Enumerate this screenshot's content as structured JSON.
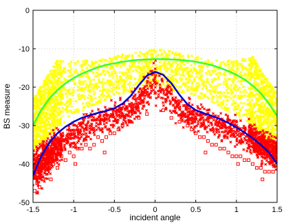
{
  "chart_data": {
    "type": "scatter",
    "title": "",
    "xlabel": "incident angle",
    "ylabel": "BS measure",
    "xlim": [
      -1.5,
      1.5
    ],
    "ylim": [
      -50,
      0
    ],
    "x_ticks": [
      -1.5,
      -1,
      -0.5,
      0,
      0.5,
      1,
      1.5
    ],
    "x_tick_labels": [
      "-1.5",
      "-1",
      "-0.5",
      "0",
      "0.5",
      "1",
      "1.5"
    ],
    "y_ticks": [
      -50,
      -40,
      -30,
      -20,
      -10,
      0
    ],
    "y_tick_labels": [
      "-50",
      "-40",
      "-30",
      "-20",
      "-10",
      "0"
    ],
    "grid": true,
    "legend": "none",
    "colors": {
      "yellow_points": "#ffff00",
      "red_points": "#ff0000",
      "green_curve": "#33ff33",
      "blue_curve": "#0000cc"
    },
    "series": [
      {
        "kind": "scatter-cloud",
        "marker": "x",
        "color": "yellow",
        "upper_envelope": {
          "x": [
            -1.5,
            -1.2,
            -1.0,
            -0.7,
            -0.3,
            0.0,
            0.3,
            0.7,
            1.0,
            1.2,
            1.5
          ],
          "y": [
            -23,
            -13,
            -13,
            -13,
            -11,
            -10,
            -11,
            -13,
            -13,
            -12,
            -22
          ]
        },
        "lower_envelope": {
          "x": [
            -1.5,
            -1.2,
            -1.0,
            -0.7,
            -0.3,
            0.0,
            0.3,
            0.7,
            1.0,
            1.2,
            1.5
          ],
          "y": [
            -40,
            -35,
            -31,
            -27,
            -24,
            -22,
            -24,
            -27,
            -31,
            -35,
            -40
          ]
        }
      },
      {
        "kind": "scatter-cloud",
        "marker": "x",
        "color": "red",
        "upper_envelope": {
          "x": [
            -1.5,
            -1.2,
            -1.0,
            -0.7,
            -0.3,
            0.0,
            0.3,
            0.7,
            1.0,
            1.2,
            1.5
          ],
          "y": [
            -33,
            -29,
            -27,
            -24,
            -21,
            -11,
            -21,
            -24,
            -26,
            -28,
            -32
          ]
        },
        "lower_envelope": {
          "x": [
            -1.5,
            -1.2,
            -1.0,
            -0.7,
            -0.3,
            0.0,
            0.3,
            0.7,
            1.0,
            1.2,
            1.5
          ],
          "y": [
            -50,
            -42,
            -38,
            -34,
            -31,
            -26,
            -31,
            -34,
            -37,
            -40,
            -43
          ]
        }
      },
      {
        "kind": "scatter-outliers",
        "marker": "square",
        "color": "red",
        "x": [
          -1.48,
          -1.45,
          -1.42,
          -1.4,
          -1.38,
          -1.35,
          -1.3,
          -1.25,
          -1.2,
          -1.15,
          -1.1,
          -1.05,
          -1.0,
          -0.95,
          -0.9,
          -0.85,
          -0.8,
          -0.75,
          -0.7,
          -0.65,
          -0.6,
          -0.55,
          -0.5,
          -0.45,
          -0.4,
          -0.3,
          -0.2,
          -0.1,
          0.1,
          0.2,
          0.3,
          0.4,
          0.45,
          0.5,
          0.55,
          0.6,
          0.65,
          0.7,
          0.75,
          0.8,
          0.85,
          0.9,
          0.95,
          1.0,
          1.05,
          1.1,
          1.15,
          1.2,
          1.25,
          1.3,
          1.35,
          1.4,
          1.45,
          -1.28,
          -0.98,
          -0.62,
          0.62,
          1.02,
          1.32
        ],
        "y": [
          -47,
          -45,
          -46,
          -43,
          -44,
          -41,
          -41,
          -40,
          -41,
          -38,
          -39,
          -37,
          -38,
          -36,
          -36,
          -35,
          -36,
          -35,
          -33,
          -34,
          -33,
          -32,
          -32,
          -31,
          -30,
          -29,
          -28,
          -27,
          -26,
          -28,
          -29,
          -30,
          -31,
          -32,
          -33,
          -33,
          -34,
          -35,
          -35,
          -36,
          -36,
          -37,
          -38,
          -38,
          -38,
          -39,
          -39,
          -40,
          -41,
          -41,
          -42,
          -42,
          -42,
          -44,
          -40,
          -37,
          -37,
          -40,
          -44
        ]
      },
      {
        "kind": "line",
        "color": "green",
        "x": [
          -1.5,
          -1.4,
          -1.3,
          -1.2,
          -1.1,
          -1.0,
          -0.9,
          -0.8,
          -0.7,
          -0.6,
          -0.5,
          -0.4,
          -0.3,
          -0.2,
          -0.1,
          0.0,
          0.1,
          0.2,
          0.3,
          0.4,
          0.5,
          0.6,
          0.7,
          0.8,
          0.9,
          1.0,
          1.1,
          1.2,
          1.3,
          1.4,
          1.5
        ],
        "y": [
          -30.0,
          -26.0,
          -23.0,
          -20.8,
          -19.0,
          -17.6,
          -16.5,
          -15.6,
          -14.8,
          -14.2,
          -13.8,
          -13.4,
          -13.1,
          -12.9,
          -12.8,
          -12.7,
          -12.7,
          -12.8,
          -12.9,
          -13.1,
          -13.4,
          -13.8,
          -14.3,
          -15.0,
          -15.8,
          -16.8,
          -18.0,
          -19.6,
          -21.6,
          -24.3,
          -27.5
        ]
      },
      {
        "kind": "line",
        "color": "blue",
        "x": [
          -1.5,
          -1.4,
          -1.3,
          -1.2,
          -1.1,
          -1.0,
          -0.9,
          -0.8,
          -0.7,
          -0.6,
          -0.5,
          -0.4,
          -0.3,
          -0.2,
          -0.1,
          0.0,
          0.1,
          0.2,
          0.3,
          0.4,
          0.5,
          0.6,
          0.7,
          0.8,
          0.9,
          1.0,
          1.1,
          1.2,
          1.3,
          1.4,
          1.5
        ],
        "y": [
          -43.0,
          -38.0,
          -34.5,
          -32.0,
          -30.3,
          -29.0,
          -28.0,
          -27.3,
          -26.7,
          -26.2,
          -25.5,
          -24.3,
          -22.3,
          -19.5,
          -17.0,
          -16.0,
          -16.8,
          -19.0,
          -22.0,
          -24.5,
          -26.0,
          -26.8,
          -27.5,
          -28.3,
          -29.3,
          -30.5,
          -31.8,
          -33.3,
          -35.0,
          -37.0,
          -40.0
        ]
      }
    ]
  }
}
